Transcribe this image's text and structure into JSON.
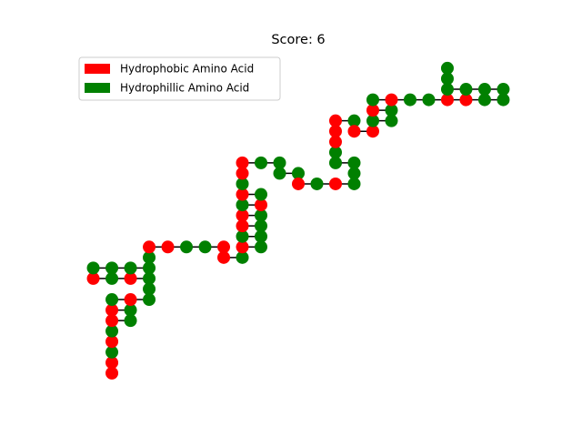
{
  "chart_data": {
    "type": "lattice",
    "title": "Score: 6",
    "series": [
      {
        "name": "Hydrophobic Amino Acid",
        "color": "red"
      },
      {
        "name": "Hydrophillic Amino Acid",
        "color": "green"
      }
    ],
    "legend": "upper left",
    "line_color": "black",
    "xlim": [
      -1.1,
      23.1
    ],
    "ylim": [
      -1.5,
      30.5
    ],
    "x": [
      1,
      1,
      1,
      1,
      1,
      1,
      2,
      2,
      1,
      1,
      2,
      3,
      3,
      3,
      2,
      1,
      0,
      0,
      1,
      2,
      3,
      3,
      3,
      4,
      5,
      6,
      7,
      7,
      8,
      8,
      9,
      9,
      8,
      8,
      9,
      9,
      8,
      8,
      9,
      9,
      8,
      8,
      8,
      8,
      9,
      10,
      10,
      11,
      11,
      12,
      13,
      14,
      14,
      14,
      13,
      13,
      13,
      13,
      13,
      14,
      14,
      15,
      15,
      16,
      16,
      15,
      15,
      16,
      17,
      18,
      19,
      20,
      21,
      22,
      22,
      21,
      20,
      19,
      19,
      19
    ],
    "y": [
      0,
      1,
      2,
      3,
      4,
      5,
      5,
      6,
      6,
      7,
      7,
      7,
      8,
      9,
      9,
      9,
      9,
      10,
      10,
      10,
      10,
      11,
      12,
      12,
      12,
      12,
      12,
      11,
      11,
      12,
      12,
      13,
      13,
      14,
      14,
      15,
      15,
      16,
      16,
      17,
      17,
      18,
      19,
      20,
      20,
      20,
      19,
      19,
      18,
      18,
      18,
      18,
      19,
      20,
      20,
      21,
      22,
      23,
      24,
      24,
      23,
      23,
      24,
      24,
      25,
      25,
      26,
      26,
      26,
      26,
      26,
      26,
      26,
      26,
      27,
      27,
      27,
      27,
      28,
      29
    ],
    "point_colors": [
      "red",
      "red",
      "green",
      "red",
      "green",
      "red",
      "green",
      "green",
      "red",
      "green",
      "red",
      "green",
      "green",
      "green",
      "red",
      "green",
      "red",
      "green",
      "green",
      "green",
      "green",
      "green",
      "red",
      "red",
      "green",
      "green",
      "red",
      "red",
      "green",
      "red",
      "green",
      "green",
      "green",
      "red",
      "green",
      "green",
      "red",
      "green",
      "red",
      "green",
      "red",
      "green",
      "red",
      "red",
      "green",
      "green",
      "green",
      "green",
      "red",
      "green",
      "red",
      "green",
      "green",
      "green",
      "green",
      "green",
      "red",
      "red",
      "red",
      "green",
      "red",
      "red",
      "green",
      "green",
      "green",
      "red",
      "green",
      "red",
      "green",
      "green",
      "red",
      "red",
      "green",
      "green",
      "green",
      "green",
      "green",
      "green",
      "green",
      "green"
    ]
  }
}
